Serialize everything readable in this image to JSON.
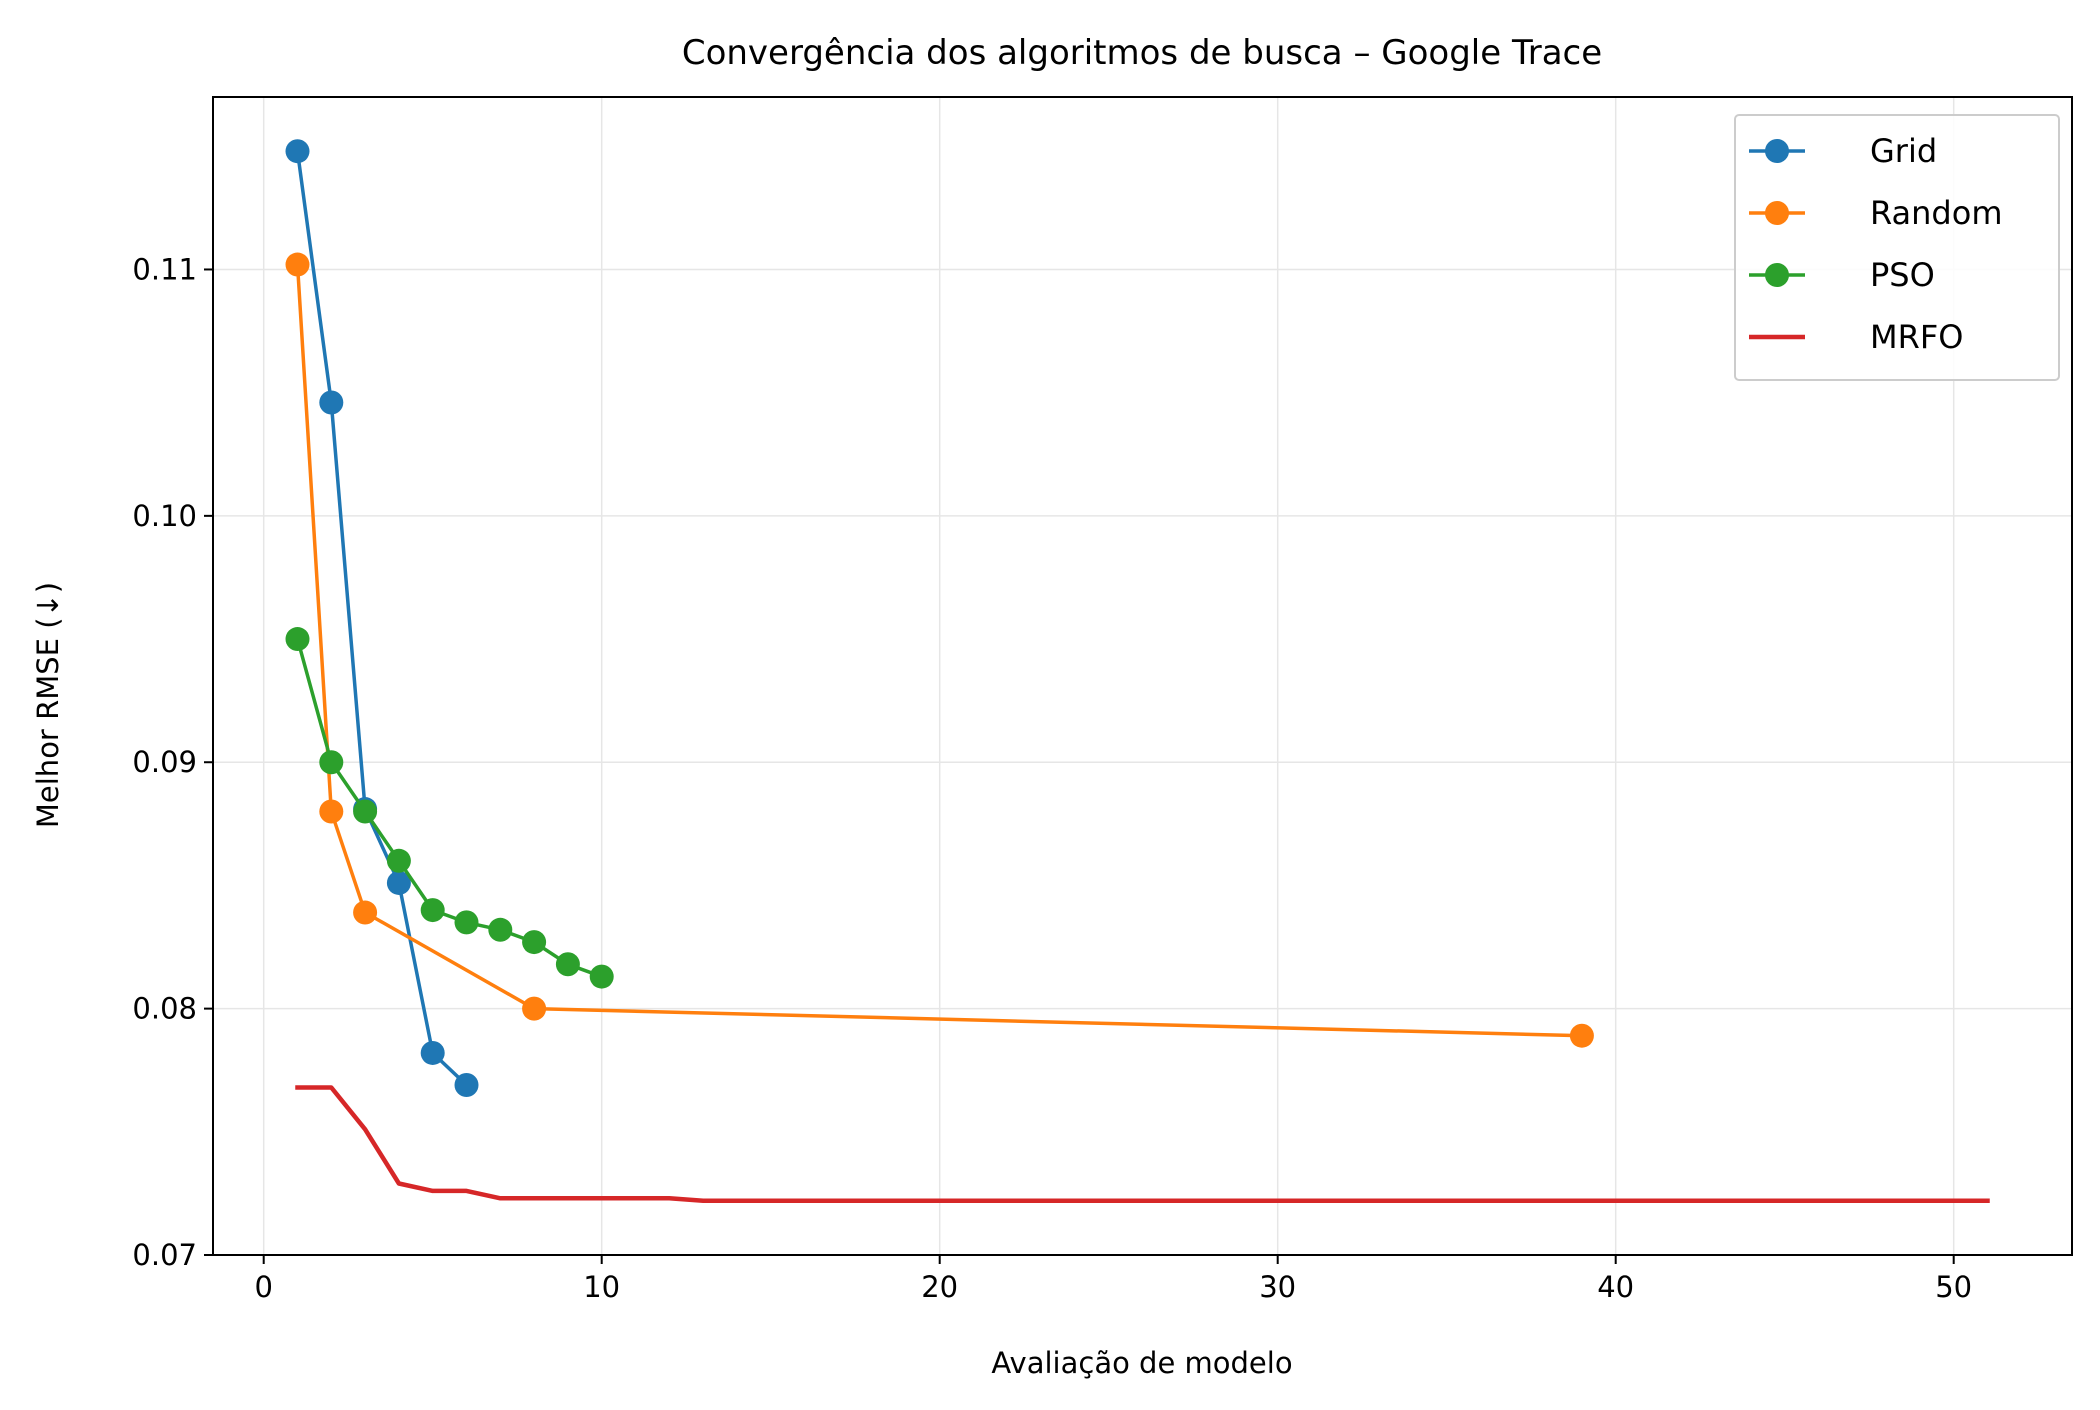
{
  "chart_data": {
    "type": "line",
    "title": "Convergência dos algoritmos de busca – Google Trace",
    "xlabel": "Avaliação de modelo",
    "ylabel": "Melhor RMSE (↓)",
    "xlim": [
      -1.5,
      53.5
    ],
    "ylim": [
      0.07,
      0.117
    ],
    "x_ticks": [
      0,
      10,
      20,
      30,
      40,
      50
    ],
    "x_tick_labels": [
      "0",
      "10",
      "20",
      "30",
      "40",
      "50"
    ],
    "y_ticks": [
      0.07,
      0.08,
      0.09,
      0.1,
      0.11
    ],
    "y_tick_labels": [
      "0.07",
      "0.08",
      "0.09",
      "0.10",
      "0.11"
    ],
    "grid": true,
    "legend_position": "top-right",
    "series": [
      {
        "name": "Grid",
        "color": "#1f77b4",
        "markers": true,
        "x": [
          1,
          2,
          3,
          4,
          5,
          6
        ],
        "y": [
          0.1148,
          0.1046,
          0.0881,
          0.0851,
          0.0782,
          0.0769
        ]
      },
      {
        "name": "Random",
        "color": "#ff7f0e",
        "markers": true,
        "x": [
          1,
          2,
          3,
          8,
          39
        ],
        "y": [
          0.1102,
          0.088,
          0.0839,
          0.08,
          0.0789
        ]
      },
      {
        "name": "PSO",
        "color": "#2ca02c",
        "markers": true,
        "x": [
          1,
          2,
          3,
          4,
          5,
          6,
          7,
          8,
          9,
          10
        ],
        "y": [
          0.095,
          0.09,
          0.088,
          0.086,
          0.084,
          0.0835,
          0.0832,
          0.0827,
          0.0818,
          0.0813
        ]
      },
      {
        "name": "MRFO",
        "color": "#d62728",
        "markers": false,
        "x": [
          1,
          2,
          3,
          4,
          5,
          6,
          7,
          8,
          9,
          10,
          11,
          12,
          13,
          14,
          15,
          16,
          17,
          18,
          19,
          20,
          21,
          22,
          23,
          24,
          25,
          26,
          27,
          28,
          29,
          30,
          31,
          32,
          33,
          34,
          35,
          36,
          37,
          38,
          39,
          40,
          41,
          42,
          43,
          44,
          45,
          46,
          47,
          48,
          49,
          50,
          51
        ],
        "y": [
          0.0768,
          0.0768,
          0.0751,
          0.0729,
          0.0726,
          0.0726,
          0.0723,
          0.0723,
          0.0723,
          0.0723,
          0.0723,
          0.0723,
          0.0722,
          0.0722,
          0.0722,
          0.0722,
          0.0722,
          0.0722,
          0.0722,
          0.0722,
          0.0722,
          0.0722,
          0.0722,
          0.0722,
          0.0722,
          0.0722,
          0.0722,
          0.0722,
          0.0722,
          0.0722,
          0.0722,
          0.0722,
          0.0722,
          0.0722,
          0.0722,
          0.0722,
          0.0722,
          0.0722,
          0.0722,
          0.0722,
          0.0722,
          0.0722,
          0.0722,
          0.0722,
          0.0722,
          0.0722,
          0.0722,
          0.0722,
          0.0722,
          0.0722,
          0.0722
        ]
      }
    ]
  }
}
